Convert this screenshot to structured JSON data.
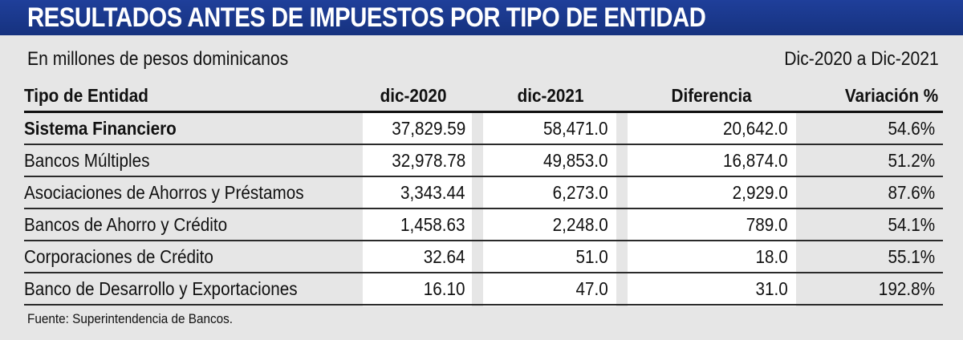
{
  "header": {
    "title": "RESULTADOS ANTES DE IMPUESTOS POR TIPO DE ENTIDAD",
    "subtitle": "En millones de pesos dominicanos",
    "period": "Dic-2020 a Dic-2021",
    "band_color": "#1f3f9a"
  },
  "footer": {
    "source": "Fuente: Superintendencia de Bancos."
  },
  "chart_data": {
    "type": "table",
    "title": "RESULTADOS ANTES DE IMPUESTOS POR TIPO DE ENTIDAD",
    "columns": [
      "Tipo de Entidad",
      "dic-2020",
      "dic-2021",
      "Diferencia",
      "Variación %"
    ],
    "rows": [
      [
        "Sistema Financiero",
        "37,829.59",
        "58,471.0",
        "20,642.0",
        "54.6%"
      ],
      [
        "Bancos Múltiples",
        "32,978.78",
        "49,853.0",
        "16,874.0",
        "51.2%"
      ],
      [
        "Asociaciones de Ahorros y Préstamos",
        "3,343.44",
        "6,273.0",
        "2,929.0",
        "87.6%"
      ],
      [
        "Bancos de Ahorro y Crédito",
        "1,458.63",
        "2,248.0",
        "789.0",
        "54.1%"
      ],
      [
        "Corporaciones de Crédito",
        "32.64",
        "51.0",
        "18.0",
        "55.1%"
      ],
      [
        "Banco de Desarrollo y Exportaciones",
        "16.10",
        "47.0",
        "31.0",
        "192.8%"
      ]
    ]
  }
}
